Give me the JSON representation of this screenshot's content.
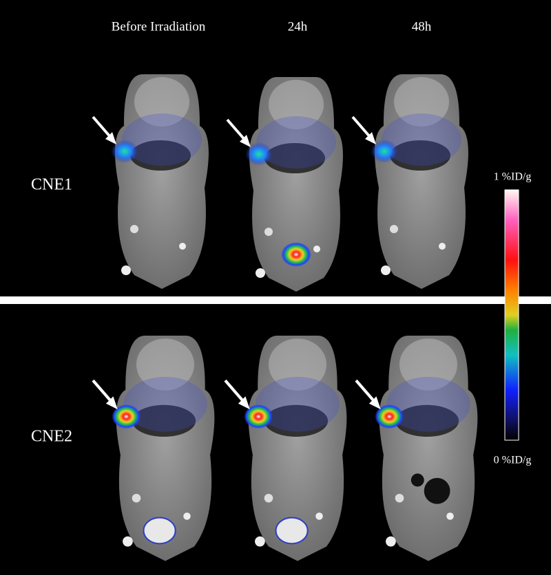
{
  "columns": [
    "Before Irradiation",
    "24h",
    "48h"
  ],
  "rows": [
    "CNE1",
    "CNE2"
  ],
  "colorbar": {
    "max_label": "1 %ID/g",
    "min_label": "0 %ID/g"
  }
}
